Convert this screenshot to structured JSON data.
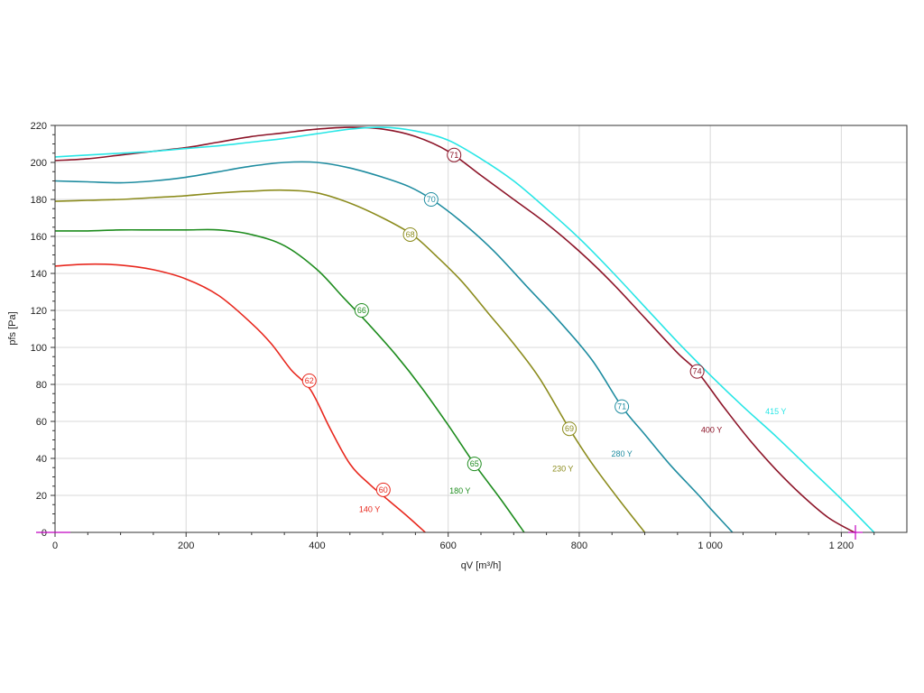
{
  "chart_data": {
    "type": "line",
    "xlabel": "qV [m³/h]",
    "ylabel": "pfs [Pa]",
    "xlim": [
      0,
      1300
    ],
    "ylim": [
      0,
      220
    ],
    "x_ticks": [
      0,
      200,
      400,
      600,
      800,
      1000,
      1200
    ],
    "x_tick_labels": [
      "0",
      "200",
      "400",
      "600",
      "800",
      "1 000",
      "1 200"
    ],
    "y_ticks": [
      0,
      20,
      40,
      60,
      80,
      100,
      120,
      140,
      160,
      180,
      200,
      220
    ],
    "y_tick_labels": [
      "0",
      "20",
      "40",
      "60",
      "80",
      "100",
      "120",
      "140",
      "160",
      "180",
      "200",
      "220"
    ],
    "grid": true,
    "series": [
      {
        "name": "140 Y",
        "color": "#e8281e",
        "points": [
          [
            0,
            144
          ],
          [
            50,
            145
          ],
          [
            100,
            144.5
          ],
          [
            150,
            142
          ],
          [
            200,
            137
          ],
          [
            250,
            128
          ],
          [
            300,
            113
          ],
          [
            330,
            102
          ],
          [
            360,
            88
          ],
          [
            390,
            77
          ],
          [
            420,
            56
          ],
          [
            450,
            37
          ],
          [
            480,
            26
          ],
          [
            510,
            17
          ],
          [
            540,
            8
          ],
          [
            565,
            0
          ]
        ],
        "markers": [
          {
            "x": 388,
            "y": 82,
            "label": "62"
          },
          {
            "x": 501,
            "y": 23,
            "label": "60"
          }
        ],
        "label_pos": [
          480,
          11
        ]
      },
      {
        "name": "180 Y",
        "color": "#1e8c1e",
        "points": [
          [
            0,
            163
          ],
          [
            50,
            163
          ],
          [
            100,
            163.5
          ],
          [
            150,
            163.5
          ],
          [
            200,
            163.5
          ],
          [
            250,
            163.5
          ],
          [
            300,
            161
          ],
          [
            350,
            155
          ],
          [
            400,
            142
          ],
          [
            440,
            127
          ],
          [
            480,
            112
          ],
          [
            520,
            96
          ],
          [
            560,
            78
          ],
          [
            600,
            58
          ],
          [
            640,
            37
          ],
          [
            680,
            18
          ],
          [
            716,
            0
          ]
        ],
        "markers": [
          {
            "x": 468,
            "y": 120,
            "label": "66"
          },
          {
            "x": 640,
            "y": 37,
            "label": "65"
          }
        ],
        "label_pos": [
          618,
          21
        ]
      },
      {
        "name": "230 Y",
        "color": "#8c8c1e",
        "points": [
          [
            0,
            179
          ],
          [
            50,
            179.5
          ],
          [
            100,
            180
          ],
          [
            150,
            181
          ],
          [
            200,
            182
          ],
          [
            250,
            183.5
          ],
          [
            300,
            184.5
          ],
          [
            350,
            185
          ],
          [
            400,
            183.5
          ],
          [
            450,
            178
          ],
          [
            500,
            170
          ],
          [
            545,
            161
          ],
          [
            580,
            150
          ],
          [
            620,
            136
          ],
          [
            660,
            119
          ],
          [
            700,
            102
          ],
          [
            740,
            83
          ],
          [
            785,
            56
          ],
          [
            820,
            37
          ],
          [
            860,
            18
          ],
          [
            900,
            0
          ]
        ],
        "markers": [
          {
            "x": 542,
            "y": 161,
            "label": "68"
          },
          {
            "x": 785,
            "y": 56,
            "label": "69"
          }
        ],
        "label_pos": [
          775,
          33
        ]
      },
      {
        "name": "280 Y",
        "color": "#1e8ca0",
        "points": [
          [
            0,
            190
          ],
          [
            50,
            189.5
          ],
          [
            100,
            189
          ],
          [
            150,
            190
          ],
          [
            200,
            192
          ],
          [
            250,
            195
          ],
          [
            300,
            198
          ],
          [
            350,
            200
          ],
          [
            400,
            200
          ],
          [
            450,
            197
          ],
          [
            500,
            192
          ],
          [
            540,
            187
          ],
          [
            575,
            180
          ],
          [
            620,
            168
          ],
          [
            670,
            152
          ],
          [
            720,
            133
          ],
          [
            770,
            114
          ],
          [
            820,
            93
          ],
          [
            865,
            68
          ],
          [
            900,
            53
          ],
          [
            940,
            36
          ],
          [
            980,
            21
          ],
          [
            1000,
            13
          ],
          [
            1034,
            0
          ]
        ],
        "markers": [
          {
            "x": 574,
            "y": 180,
            "label": "70"
          },
          {
            "x": 865,
            "y": 68,
            "label": "71"
          }
        ],
        "label_pos": [
          865,
          41
        ]
      },
      {
        "name": "400 Y",
        "color": "#8c1428",
        "points": [
          [
            0,
            201
          ],
          [
            50,
            202
          ],
          [
            100,
            204
          ],
          [
            150,
            206
          ],
          [
            200,
            208
          ],
          [
            250,
            211
          ],
          [
            300,
            214
          ],
          [
            350,
            216
          ],
          [
            400,
            218
          ],
          [
            450,
            219
          ],
          [
            500,
            218
          ],
          [
            550,
            214
          ],
          [
            600,
            206
          ],
          [
            650,
            193
          ],
          [
            700,
            180
          ],
          [
            750,
            167
          ],
          [
            800,
            152
          ],
          [
            850,
            135
          ],
          [
            900,
            116
          ],
          [
            950,
            97
          ],
          [
            980,
            87
          ],
          [
            1020,
            68
          ],
          [
            1060,
            50
          ],
          [
            1100,
            34
          ],
          [
            1140,
            20
          ],
          [
            1180,
            8
          ],
          [
            1220,
            0
          ]
        ],
        "markers": [
          {
            "x": 609,
            "y": 204,
            "label": "71"
          },
          {
            "x": 980,
            "y": 87,
            "label": "74"
          }
        ],
        "label_pos": [
          1002,
          54
        ]
      },
      {
        "name": "415 Y",
        "color": "#28e6e6",
        "points": [
          [
            0,
            203
          ],
          [
            50,
            204
          ],
          [
            100,
            205
          ],
          [
            150,
            206
          ],
          [
            200,
            207.5
          ],
          [
            250,
            209
          ],
          [
            300,
            211
          ],
          [
            350,
            213
          ],
          [
            400,
            215.5
          ],
          [
            450,
            218
          ],
          [
            500,
            219
          ],
          [
            550,
            217
          ],
          [
            600,
            212
          ],
          [
            650,
            202
          ],
          [
            700,
            190
          ],
          [
            750,
            175
          ],
          [
            800,
            159
          ],
          [
            850,
            141
          ],
          [
            900,
            122
          ],
          [
            950,
            103
          ],
          [
            1000,
            85
          ],
          [
            1050,
            68
          ],
          [
            1100,
            52
          ],
          [
            1150,
            35
          ],
          [
            1200,
            18
          ],
          [
            1250,
            0
          ]
        ],
        "markers": [],
        "label_pos": [
          1100,
          64
        ]
      }
    ]
  }
}
